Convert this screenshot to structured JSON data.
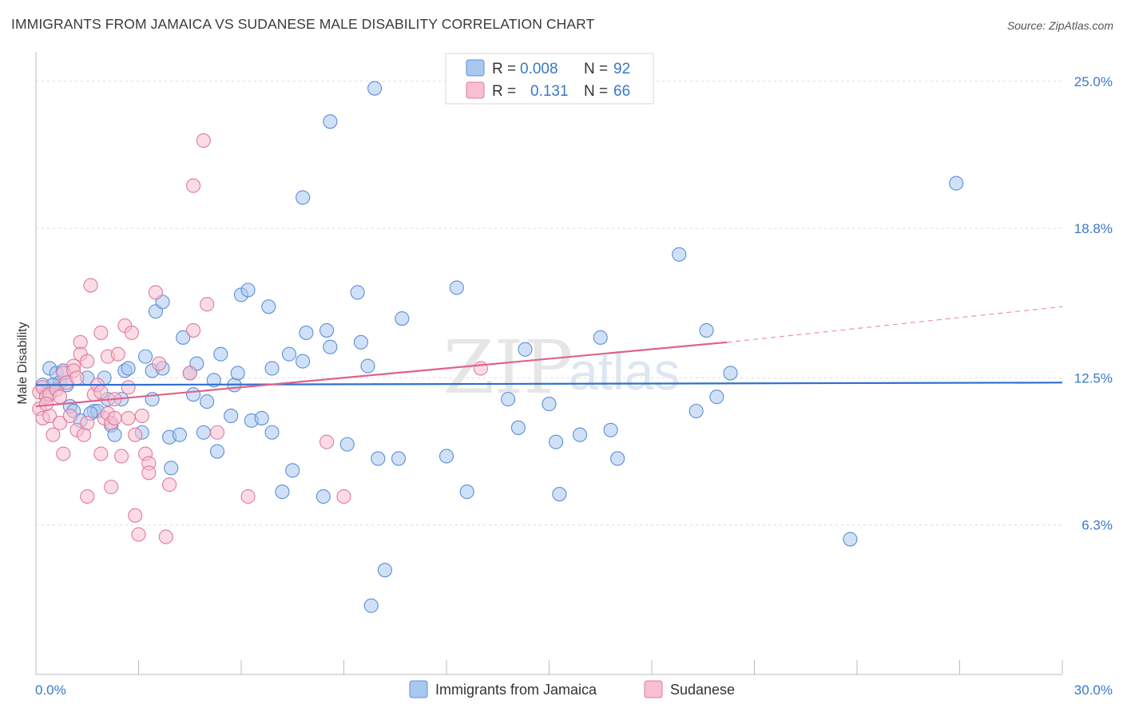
{
  "header": {
    "title": "IMMIGRANTS FROM JAMAICA VS SUDANESE MALE DISABILITY CORRELATION CHART",
    "source": "Source: ZipAtlas.com"
  },
  "watermark": {
    "part1": "ZIP",
    "part2": "atlas"
  },
  "legend": {
    "rows": [
      {
        "r_label": "R =",
        "r_value": "0.008",
        "n_label": "N =",
        "n_value": "92",
        "color": "#a9c8f0",
        "stroke": "#5b8fd6"
      },
      {
        "r_label": "R =",
        "r_value": "0.131",
        "n_label": "N =",
        "n_value": "66",
        "color": "#f7bfd0",
        "stroke": "#e07a9c"
      }
    ]
  },
  "bottom_legend": [
    {
      "label": "Immigrants from Jamaica",
      "color": "#a9c8f0",
      "stroke": "#5b8fd6"
    },
    {
      "label": "Sudanese",
      "color": "#f7bfd0",
      "stroke": "#e07a9c"
    }
  ],
  "chart_data": {
    "type": "scatter",
    "title": "IMMIGRANTS FROM JAMAICA VS SUDANESE MALE DISABILITY CORRELATION CHART",
    "xlabel": "",
    "ylabel": "Male Disability",
    "xlim": [
      0,
      30
    ],
    "ylim": [
      0,
      25.9
    ],
    "x_tick_labels": [
      {
        "value": 0,
        "label": "0.0%"
      },
      {
        "value": 30,
        "label": "30.0%"
      }
    ],
    "y_tick_labels": [
      {
        "value": 6.3,
        "label": "6.3%"
      },
      {
        "value": 12.5,
        "label": "12.5%"
      },
      {
        "value": 18.8,
        "label": "18.8%"
      },
      {
        "value": 25.0,
        "label": "25.0%"
      }
    ],
    "grid": true,
    "series": [
      {
        "name": "Immigrants from Jamaica",
        "color": "#5b8fd6",
        "fill": "#a9c8f0",
        "trend": {
          "x": [
            0,
            30
          ],
          "y": [
            12.2,
            12.3
          ],
          "color": "#2f6fce"
        },
        "points": [
          [
            0.2,
            12.2
          ],
          [
            0.3,
            11.8
          ],
          [
            0.4,
            12.9
          ],
          [
            0.5,
            12.2
          ],
          [
            0.6,
            12.7
          ],
          [
            0.7,
            12.3
          ],
          [
            0.8,
            12.8
          ],
          [
            0.9,
            12.2
          ],
          [
            1.0,
            11.3
          ],
          [
            1.1,
            11.1
          ],
          [
            1.3,
            10.7
          ],
          [
            1.5,
            12.5
          ],
          [
            1.7,
            11.1
          ],
          [
            1.8,
            11.1
          ],
          [
            2.0,
            12.5
          ],
          [
            2.2,
            10.5
          ],
          [
            2.3,
            10.1
          ],
          [
            2.5,
            11.6
          ],
          [
            2.6,
            12.8
          ],
          [
            2.7,
            12.9
          ],
          [
            3.2,
            13.4
          ],
          [
            3.4,
            12.8
          ],
          [
            3.4,
            11.6
          ],
          [
            3.5,
            15.3
          ],
          [
            3.7,
            15.7
          ],
          [
            3.7,
            12.9
          ],
          [
            3.9,
            10.0
          ],
          [
            3.95,
            8.7
          ],
          [
            4.2,
            10.1
          ],
          [
            4.3,
            14.2
          ],
          [
            4.5,
            12.7
          ],
          [
            4.7,
            13.1
          ],
          [
            4.9,
            10.2
          ],
          [
            5.0,
            11.5
          ],
          [
            5.2,
            12.4
          ],
          [
            5.3,
            9.4
          ],
          [
            5.4,
            13.5
          ],
          [
            5.7,
            10.9
          ],
          [
            5.8,
            12.2
          ],
          [
            5.9,
            12.7
          ],
          [
            6.0,
            16.0
          ],
          [
            6.2,
            16.2
          ],
          [
            6.3,
            10.7
          ],
          [
            6.6,
            10.8
          ],
          [
            6.8,
            15.5
          ],
          [
            6.9,
            12.9
          ],
          [
            6.9,
            10.2
          ],
          [
            7.2,
            7.7
          ],
          [
            7.4,
            13.5
          ],
          [
            7.5,
            8.6
          ],
          [
            7.8,
            13.2
          ],
          [
            7.8,
            20.1
          ],
          [
            7.9,
            14.4
          ],
          [
            8.4,
            7.5
          ],
          [
            8.5,
            14.5
          ],
          [
            8.6,
            13.8
          ],
          [
            8.6,
            23.3
          ],
          [
            9.1,
            9.7
          ],
          [
            9.4,
            16.1
          ],
          [
            9.5,
            14.0
          ],
          [
            9.7,
            13.0
          ],
          [
            9.8,
            2.9
          ],
          [
            9.9,
            24.7
          ],
          [
            10.0,
            9.1
          ],
          [
            10.2,
            4.4
          ],
          [
            10.6,
            9.1
          ],
          [
            10.7,
            15.0
          ],
          [
            12.0,
            9.2
          ],
          [
            12.3,
            16.3
          ],
          [
            12.6,
            7.7
          ],
          [
            13.8,
            11.6
          ],
          [
            14.1,
            10.4
          ],
          [
            14.3,
            13.7
          ],
          [
            15.0,
            11.4
          ],
          [
            15.2,
            9.8
          ],
          [
            15.3,
            7.6
          ],
          [
            15.9,
            10.1
          ],
          [
            16.5,
            14.2
          ],
          [
            16.8,
            10.3
          ],
          [
            17.0,
            9.1
          ],
          [
            18.8,
            17.7
          ],
          [
            19.3,
            11.1
          ],
          [
            19.6,
            14.5
          ],
          [
            19.9,
            11.7
          ],
          [
            20.3,
            12.7
          ],
          [
            23.8,
            5.7
          ],
          [
            26.9,
            20.7
          ],
          [
            0.5,
            12.2
          ],
          [
            1.6,
            11.0
          ],
          [
            2.1,
            11.6
          ],
          [
            3.1,
            10.2
          ],
          [
            4.6,
            11.8
          ]
        ]
      },
      {
        "name": "Sudanese",
        "color": "#e07a9c",
        "fill": "#f7bfd0",
        "trend": {
          "x": [
            0,
            20.2
          ],
          "y": [
            11.3,
            14.0
          ],
          "dash_to": [
            30,
            15.5
          ],
          "color": "#e0628c"
        },
        "points": [
          [
            0.1,
            11.9
          ],
          [
            0.1,
            11.2
          ],
          [
            0.2,
            10.8
          ],
          [
            0.2,
            12.1
          ],
          [
            0.3,
            11.7
          ],
          [
            0.4,
            11.8
          ],
          [
            0.4,
            10.9
          ],
          [
            0.5,
            10.1
          ],
          [
            0.6,
            12.0
          ],
          [
            0.7,
            11.7
          ],
          [
            0.7,
            10.6
          ],
          [
            0.8,
            9.3
          ],
          [
            0.8,
            12.7
          ],
          [
            0.9,
            12.3
          ],
          [
            1.0,
            10.9
          ],
          [
            1.1,
            13.0
          ],
          [
            1.1,
            12.8
          ],
          [
            1.2,
            10.3
          ],
          [
            1.2,
            12.5
          ],
          [
            1.3,
            14.0
          ],
          [
            1.3,
            13.5
          ],
          [
            1.4,
            10.1
          ],
          [
            1.5,
            10.6
          ],
          [
            1.5,
            7.5
          ],
          [
            1.5,
            13.2
          ],
          [
            1.6,
            16.4
          ],
          [
            1.7,
            11.8
          ],
          [
            1.8,
            12.2
          ],
          [
            1.9,
            9.3
          ],
          [
            1.9,
            14.4
          ],
          [
            2.0,
            10.8
          ],
          [
            2.1,
            13.4
          ],
          [
            2.1,
            11.0
          ],
          [
            2.2,
            10.6
          ],
          [
            2.2,
            7.9
          ],
          [
            2.3,
            10.8
          ],
          [
            2.3,
            11.6
          ],
          [
            2.4,
            13.5
          ],
          [
            2.5,
            9.2
          ],
          [
            2.6,
            14.7
          ],
          [
            2.7,
            10.8
          ],
          [
            2.7,
            12.1
          ],
          [
            2.8,
            14.4
          ],
          [
            2.9,
            10.1
          ],
          [
            2.9,
            6.7
          ],
          [
            3.0,
            5.9
          ],
          [
            3.1,
            10.9
          ],
          [
            3.2,
            9.3
          ],
          [
            3.3,
            8.9
          ],
          [
            3.3,
            8.5
          ],
          [
            3.5,
            16.1
          ],
          [
            3.6,
            13.1
          ],
          [
            3.8,
            5.8
          ],
          [
            3.9,
            8.0
          ],
          [
            4.5,
            12.7
          ],
          [
            4.6,
            14.5
          ],
          [
            4.6,
            20.6
          ],
          [
            4.9,
            22.5
          ],
          [
            5.0,
            15.6
          ],
          [
            5.3,
            10.2
          ],
          [
            6.2,
            7.5
          ],
          [
            8.5,
            9.8
          ],
          [
            9.0,
            7.5
          ],
          [
            13.0,
            12.9
          ],
          [
            0.3,
            11.4
          ],
          [
            1.9,
            11.9
          ]
        ]
      }
    ]
  }
}
